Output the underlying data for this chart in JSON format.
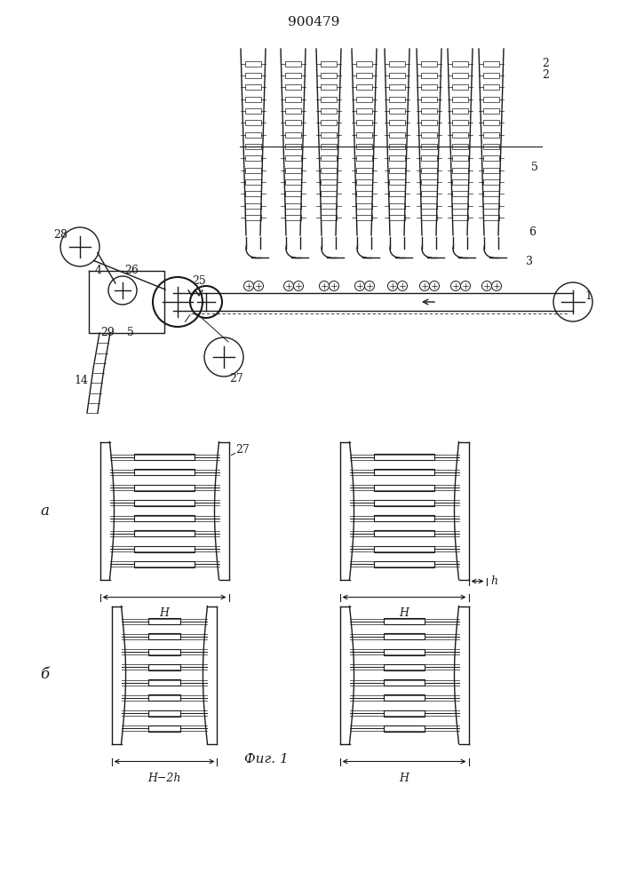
{
  "title": "900479",
  "fig_label": "Фиг. 1",
  "background_color": "#ffffff",
  "line_color": "#1a1a1a",
  "label_a": "а",
  "label_b": "б"
}
